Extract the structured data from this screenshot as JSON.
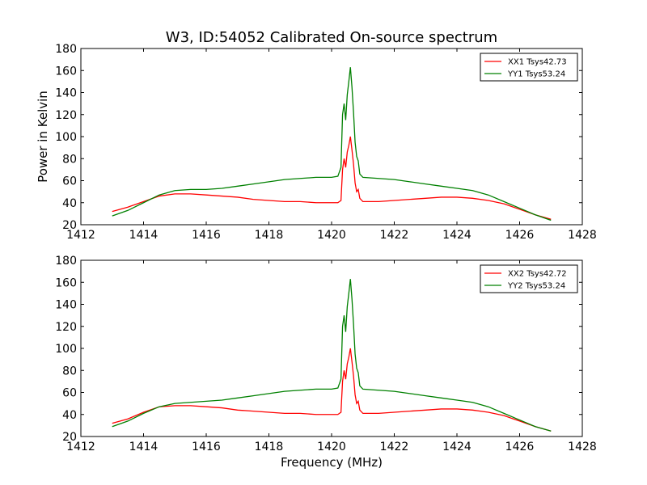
{
  "figure": {
    "title": "W3, ID:54052 Calibrated On-source spectrum"
  },
  "chart_data": [
    {
      "type": "line",
      "title": "W3, ID:54052 Calibrated On-source spectrum",
      "xlabel": "",
      "ylabel": "Power in Kelvin",
      "xlim": [
        1412,
        1428
      ],
      "ylim": [
        20,
        180
      ],
      "xticks": [
        1412,
        1414,
        1416,
        1418,
        1420,
        1422,
        1424,
        1426,
        1428
      ],
      "yticks": [
        20,
        40,
        60,
        80,
        100,
        120,
        140,
        160,
        180
      ],
      "grid": false,
      "legend": "top-right",
      "series": [
        {
          "name": "XX1 Tsys42.73",
          "color": "#ff0000",
          "points": [
            [
              1413.0,
              32
            ],
            [
              1413.5,
              36
            ],
            [
              1414.0,
              41
            ],
            [
              1414.5,
              46
            ],
            [
              1415.0,
              48
            ],
            [
              1415.5,
              48
            ],
            [
              1416.0,
              47
            ],
            [
              1416.5,
              46
            ],
            [
              1417.0,
              45
            ],
            [
              1417.5,
              43
            ],
            [
              1418.0,
              42
            ],
            [
              1418.5,
              41
            ],
            [
              1419.0,
              41
            ],
            [
              1419.5,
              40
            ],
            [
              1420.0,
              40
            ],
            [
              1420.2,
              40
            ],
            [
              1420.3,
              42
            ],
            [
              1420.35,
              70
            ],
            [
              1420.4,
              80
            ],
            [
              1420.45,
              72
            ],
            [
              1420.5,
              86
            ],
            [
              1420.55,
              92
            ],
            [
              1420.6,
              100
            ],
            [
              1420.65,
              88
            ],
            [
              1420.7,
              75
            ],
            [
              1420.75,
              58
            ],
            [
              1420.8,
              50
            ],
            [
              1420.85,
              52
            ],
            [
              1420.9,
              44
            ],
            [
              1421.0,
              41
            ],
            [
              1421.5,
              41
            ],
            [
              1422.0,
              42
            ],
            [
              1422.5,
              43
            ],
            [
              1423.0,
              44
            ],
            [
              1423.5,
              45
            ],
            [
              1424.0,
              45
            ],
            [
              1424.5,
              44
            ],
            [
              1425.0,
              42
            ],
            [
              1425.5,
              39
            ],
            [
              1426.0,
              34
            ],
            [
              1426.5,
              29
            ],
            [
              1427.0,
              25
            ]
          ]
        },
        {
          "name": "YY1 Tsys53.24",
          "color": "#008000",
          "points": [
            [
              1413.0,
              28
            ],
            [
              1413.5,
              33
            ],
            [
              1414.0,
              40
            ],
            [
              1414.5,
              47
            ],
            [
              1415.0,
              51
            ],
            [
              1415.5,
              52
            ],
            [
              1416.0,
              52
            ],
            [
              1416.5,
              53
            ],
            [
              1417.0,
              55
            ],
            [
              1417.5,
              57
            ],
            [
              1418.0,
              59
            ],
            [
              1418.5,
              61
            ],
            [
              1419.0,
              62
            ],
            [
              1419.5,
              63
            ],
            [
              1420.0,
              63
            ],
            [
              1420.2,
              64
            ],
            [
              1420.3,
              72
            ],
            [
              1420.35,
              120
            ],
            [
              1420.4,
              130
            ],
            [
              1420.45,
              115
            ],
            [
              1420.5,
              138
            ],
            [
              1420.55,
              150
            ],
            [
              1420.6,
              163
            ],
            [
              1420.65,
              145
            ],
            [
              1420.7,
              122
            ],
            [
              1420.75,
              95
            ],
            [
              1420.8,
              82
            ],
            [
              1420.85,
              78
            ],
            [
              1420.9,
              66
            ],
            [
              1421.0,
              63
            ],
            [
              1421.5,
              62
            ],
            [
              1422.0,
              61
            ],
            [
              1422.5,
              59
            ],
            [
              1423.0,
              57
            ],
            [
              1423.5,
              55
            ],
            [
              1424.0,
              53
            ],
            [
              1424.5,
              51
            ],
            [
              1425.0,
              47
            ],
            [
              1425.5,
              41
            ],
            [
              1426.0,
              35
            ],
            [
              1426.5,
              29
            ],
            [
              1427.0,
              24
            ]
          ]
        }
      ]
    },
    {
      "type": "line",
      "title": "",
      "xlabel": "Frequency (MHz)",
      "ylabel": "",
      "xlim": [
        1412,
        1428
      ],
      "ylim": [
        20,
        180
      ],
      "xticks": [
        1412,
        1414,
        1416,
        1418,
        1420,
        1422,
        1424,
        1426,
        1428
      ],
      "yticks": [
        20,
        40,
        60,
        80,
        100,
        120,
        140,
        160,
        180
      ],
      "grid": false,
      "legend": "top-right",
      "series": [
        {
          "name": "XX2 Tsys42.72",
          "color": "#ff0000",
          "points": [
            [
              1413.0,
              32
            ],
            [
              1413.5,
              36
            ],
            [
              1414.0,
              42
            ],
            [
              1414.5,
              47
            ],
            [
              1415.0,
              48
            ],
            [
              1415.5,
              48
            ],
            [
              1416.0,
              47
            ],
            [
              1416.5,
              46
            ],
            [
              1417.0,
              44
            ],
            [
              1417.5,
              43
            ],
            [
              1418.0,
              42
            ],
            [
              1418.5,
              41
            ],
            [
              1419.0,
              41
            ],
            [
              1419.5,
              40
            ],
            [
              1420.0,
              40
            ],
            [
              1420.2,
              40
            ],
            [
              1420.3,
              42
            ],
            [
              1420.35,
              70
            ],
            [
              1420.4,
              80
            ],
            [
              1420.45,
              72
            ],
            [
              1420.5,
              86
            ],
            [
              1420.55,
              92
            ],
            [
              1420.6,
              100
            ],
            [
              1420.65,
              88
            ],
            [
              1420.7,
              75
            ],
            [
              1420.75,
              58
            ],
            [
              1420.8,
              50
            ],
            [
              1420.85,
              52
            ],
            [
              1420.9,
              44
            ],
            [
              1421.0,
              41
            ],
            [
              1421.5,
              41
            ],
            [
              1422.0,
              42
            ],
            [
              1422.5,
              43
            ],
            [
              1423.0,
              44
            ],
            [
              1423.5,
              45
            ],
            [
              1424.0,
              45
            ],
            [
              1424.5,
              44
            ],
            [
              1425.0,
              42
            ],
            [
              1425.5,
              39
            ],
            [
              1426.0,
              34
            ],
            [
              1426.5,
              29
            ],
            [
              1427.0,
              25
            ]
          ]
        },
        {
          "name": "YY2 Tsys53.24",
          "color": "#008000",
          "points": [
            [
              1413.0,
              29
            ],
            [
              1413.5,
              34
            ],
            [
              1414.0,
              41
            ],
            [
              1414.5,
              47
            ],
            [
              1415.0,
              50
            ],
            [
              1415.5,
              51
            ],
            [
              1416.0,
              52
            ],
            [
              1416.5,
              53
            ],
            [
              1417.0,
              55
            ],
            [
              1417.5,
              57
            ],
            [
              1418.0,
              59
            ],
            [
              1418.5,
              61
            ],
            [
              1419.0,
              62
            ],
            [
              1419.5,
              63
            ],
            [
              1420.0,
              63
            ],
            [
              1420.2,
              64
            ],
            [
              1420.3,
              72
            ],
            [
              1420.35,
              120
            ],
            [
              1420.4,
              130
            ],
            [
              1420.45,
              115
            ],
            [
              1420.5,
              138
            ],
            [
              1420.55,
              150
            ],
            [
              1420.6,
              163
            ],
            [
              1420.65,
              145
            ],
            [
              1420.7,
              122
            ],
            [
              1420.75,
              95
            ],
            [
              1420.8,
              82
            ],
            [
              1420.85,
              78
            ],
            [
              1420.9,
              66
            ],
            [
              1421.0,
              63
            ],
            [
              1421.5,
              62
            ],
            [
              1422.0,
              61
            ],
            [
              1422.5,
              59
            ],
            [
              1423.0,
              57
            ],
            [
              1423.5,
              55
            ],
            [
              1424.0,
              53
            ],
            [
              1424.5,
              51
            ],
            [
              1425.0,
              47
            ],
            [
              1425.5,
              41
            ],
            [
              1426.0,
              35
            ],
            [
              1426.5,
              29
            ],
            [
              1427.0,
              25
            ]
          ]
        }
      ]
    }
  ]
}
